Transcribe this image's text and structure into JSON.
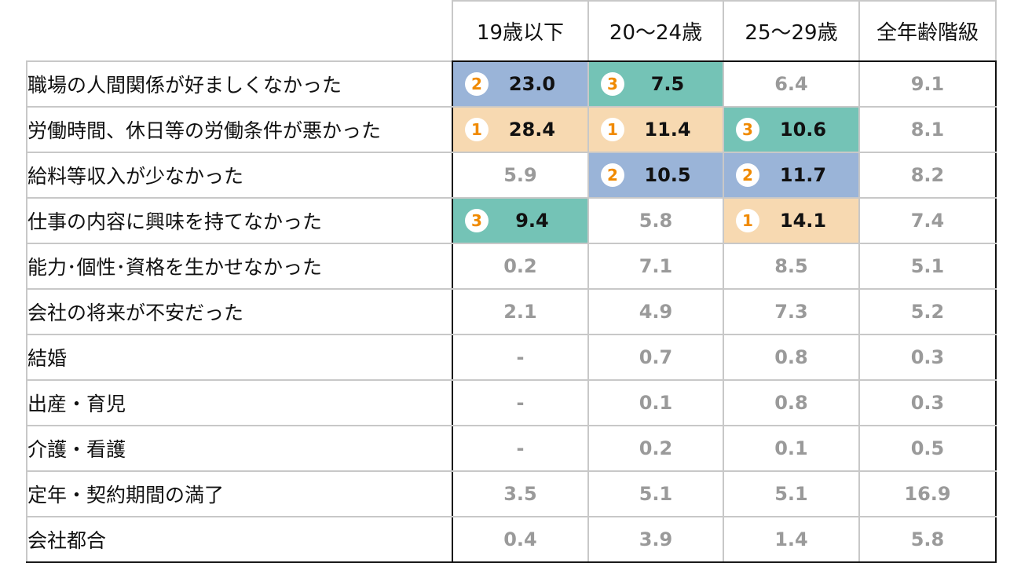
{
  "chart_data": {
    "type": "table",
    "title": "",
    "columns": [
      "19歳以下",
      "20～24歳",
      "25～29歳",
      "全年齢階級"
    ],
    "rows": [
      {
        "label": "職場の人間関係が好ましくなかった",
        "cells": [
          {
            "value": "23.0",
            "rank": "2"
          },
          {
            "value": "7.5",
            "rank": "3"
          },
          {
            "value": "6.4",
            "rank": ""
          },
          {
            "value": "9.1",
            "rank": ""
          }
        ]
      },
      {
        "label": "労働時間、休日等の労働条件が悪かった",
        "cells": [
          {
            "value": "28.4",
            "rank": "1"
          },
          {
            "value": "11.4",
            "rank": "1"
          },
          {
            "value": "10.6",
            "rank": "3"
          },
          {
            "value": "8.1",
            "rank": ""
          }
        ]
      },
      {
        "label": "給料等収入が少なかった",
        "cells": [
          {
            "value": "5.9",
            "rank": ""
          },
          {
            "value": "10.5",
            "rank": "2"
          },
          {
            "value": "11.7",
            "rank": "2"
          },
          {
            "value": "8.2",
            "rank": ""
          }
        ]
      },
      {
        "label": "仕事の内容に興味を持てなかった",
        "cells": [
          {
            "value": "9.4",
            "rank": "3"
          },
          {
            "value": "5.8",
            "rank": ""
          },
          {
            "value": "14.1",
            "rank": "1"
          },
          {
            "value": "7.4",
            "rank": ""
          }
        ]
      },
      {
        "label": "能力･個性･資格を生かせなかった",
        "cells": [
          {
            "value": "0.2",
            "rank": ""
          },
          {
            "value": "7.1",
            "rank": ""
          },
          {
            "value": "8.5",
            "rank": ""
          },
          {
            "value": "5.1",
            "rank": ""
          }
        ]
      },
      {
        "label": "会社の将来が不安だった",
        "cells": [
          {
            "value": "2.1",
            "rank": ""
          },
          {
            "value": "4.9",
            "rank": ""
          },
          {
            "value": "7.3",
            "rank": ""
          },
          {
            "value": "5.2",
            "rank": ""
          }
        ]
      },
      {
        "label": "結婚",
        "cells": [
          {
            "value": "-",
            "rank": ""
          },
          {
            "value": "0.7",
            "rank": ""
          },
          {
            "value": "0.8",
            "rank": ""
          },
          {
            "value": "0.3",
            "rank": ""
          }
        ]
      },
      {
        "label": "出産・育児",
        "cells": [
          {
            "value": "-",
            "rank": ""
          },
          {
            "value": "0.1",
            "rank": ""
          },
          {
            "value": "0.8",
            "rank": ""
          },
          {
            "value": "0.3",
            "rank": ""
          }
        ]
      },
      {
        "label": "介護・看護",
        "cells": [
          {
            "value": "-",
            "rank": ""
          },
          {
            "value": "0.2",
            "rank": ""
          },
          {
            "value": "0.1",
            "rank": ""
          },
          {
            "value": "0.5",
            "rank": ""
          }
        ]
      },
      {
        "label": "定年・契約期間の満了",
        "cells": [
          {
            "value": "3.5",
            "rank": ""
          },
          {
            "value": "5.1",
            "rank": ""
          },
          {
            "value": "5.1",
            "rank": ""
          },
          {
            "value": "16.9",
            "rank": ""
          }
        ]
      },
      {
        "label": "会社都合",
        "cells": [
          {
            "value": "0.4",
            "rank": ""
          },
          {
            "value": "3.9",
            "rank": ""
          },
          {
            "value": "1.4",
            "rank": ""
          },
          {
            "value": "5.8",
            "rank": ""
          }
        ]
      }
    ]
  },
  "colors": {
    "rank_1_fill": "#f7d9b1",
    "rank_2_fill": "#9ab4d8",
    "rank_3_fill": "#74c3b6",
    "rank_number": "#f08a00",
    "unranked_value": "#9a9a9a",
    "ranked_value": "#111111"
  }
}
